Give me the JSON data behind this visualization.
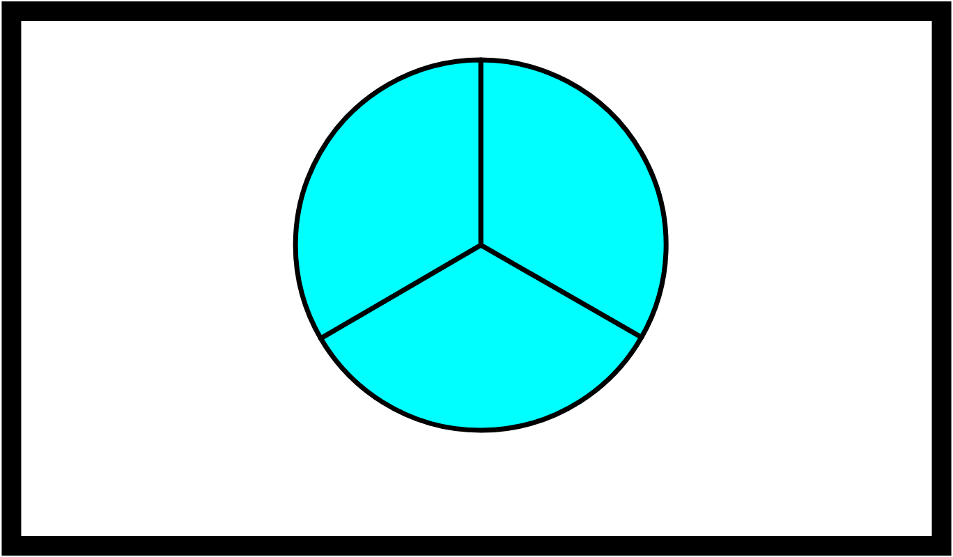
{
  "chart_data": {
    "type": "pie",
    "categories": [
      null,
      null,
      null
    ],
    "values": [
      33.3,
      33.3,
      33.4
    ],
    "colors": [
      "#00ffff",
      "#00ffff",
      "#00ffff"
    ],
    "legend": false
  }
}
